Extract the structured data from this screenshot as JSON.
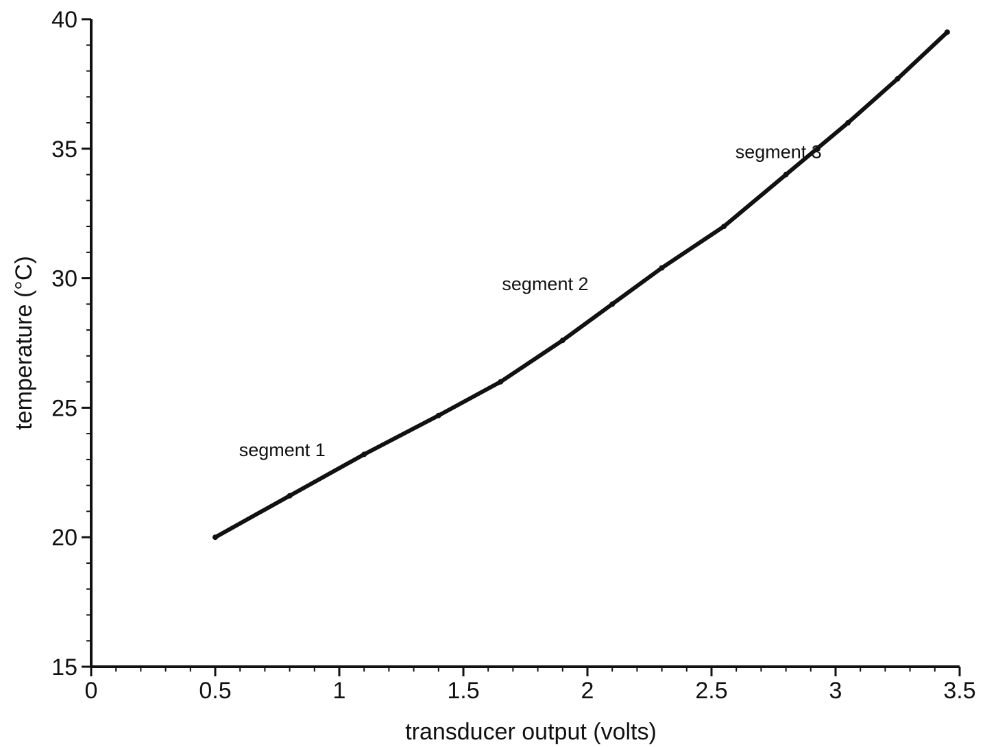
{
  "chart_data": {
    "type": "line",
    "xlabel": "transducer output (volts)",
    "ylabel": "temperature (°C)",
    "xlim": [
      0,
      3.5
    ],
    "ylim": [
      15,
      40
    ],
    "x_ticks": [
      0,
      0.5,
      1,
      1.5,
      2,
      2.5,
      3,
      3.5
    ],
    "x_tick_labels": [
      "0",
      "0.5",
      "1",
      "1.5",
      "2",
      "2.5",
      "3",
      "3.5"
    ],
    "y_ticks": [
      15,
      20,
      25,
      30,
      35,
      40
    ],
    "y_tick_labels": [
      "15",
      "20",
      "25",
      "30",
      "35",
      "40"
    ],
    "grid": false,
    "series": [
      {
        "x": [
          0.5,
          0.8,
          1.1,
          1.4,
          1.65,
          1.9,
          2.1,
          2.3,
          2.55,
          2.8,
          3.05,
          3.25,
          3.45
        ],
        "values": [
          20.0,
          21.6,
          23.2,
          24.7,
          26.0,
          27.6,
          29.0,
          30.4,
          32.0,
          34.0,
          36.0,
          37.7,
          39.5
        ]
      }
    ],
    "annotations": [
      {
        "text": "segment 1",
        "x": 0.77,
        "y": 23.4
      },
      {
        "text": "segment 2",
        "x": 1.83,
        "y": 29.8
      },
      {
        "text": "segment 3",
        "x": 2.77,
        "y": 34.9
      }
    ],
    "colors": {
      "line": "#111111",
      "axis": "#111111"
    }
  }
}
